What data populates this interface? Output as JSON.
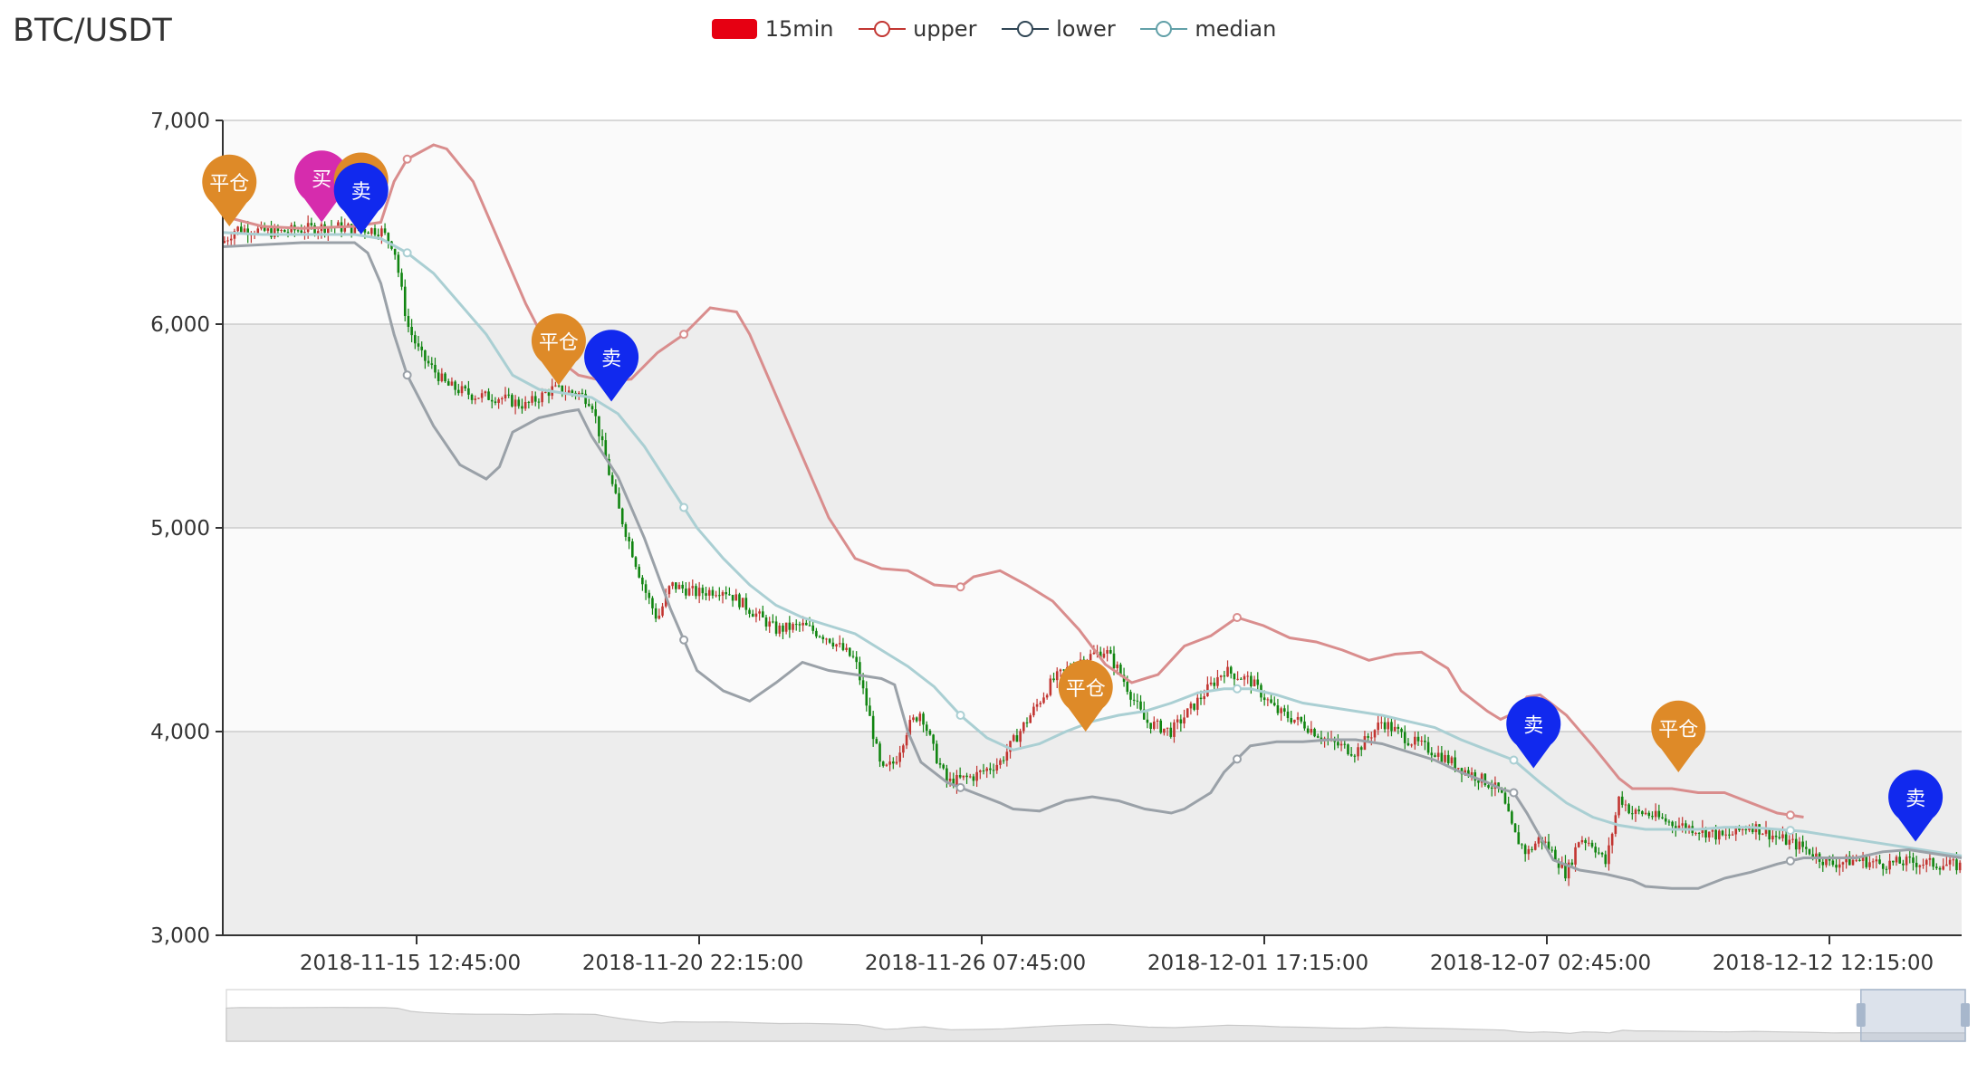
{
  "chart_data": {
    "type": "candlestick",
    "title": "BTC/USDT",
    "legend": {
      "position": "top-center",
      "items": [
        {
          "name": "15min",
          "color": "#e60012",
          "kind": "box"
        },
        {
          "name": "upper",
          "color": "#c23531",
          "kind": "line"
        },
        {
          "name": "lower",
          "color": "#2f4554",
          "kind": "line"
        },
        {
          "name": "median",
          "color": "#61a0a8",
          "kind": "line"
        }
      ]
    },
    "y_axis": {
      "min": 3000,
      "max": 7000,
      "ticks": [
        "3,000",
        "4,000",
        "5,000",
        "6,000",
        "7,000"
      ],
      "bands": true
    },
    "x_axis": {
      "ticks": [
        "2018-11-15 12:45:00",
        "2018-11-20 22:15:00",
        "2018-11-26 07:45:00",
        "2018-12-01 17:15:00",
        "2018-12-07 02:45:00",
        "2018-12-12 12:15:00"
      ]
    },
    "colors": {
      "up": "#c23531",
      "down": "#118511",
      "upper": "#d98d8d",
      "lower": "#9aa1a8",
      "median": "#aacfd3",
      "buy": "#d62cad",
      "sell": "#1129ee",
      "close": "#de8a28"
    },
    "upper": [
      [
        0,
        6530
      ],
      [
        3,
        6480
      ],
      [
        6,
        6470
      ],
      [
        10,
        6480
      ],
      [
        12,
        6500
      ],
      [
        13,
        6700
      ],
      [
        14,
        6810
      ],
      [
        16,
        6880
      ],
      [
        17,
        6860
      ],
      [
        19,
        6700
      ],
      [
        21,
        6400
      ],
      [
        23,
        6100
      ],
      [
        25,
        5850
      ],
      [
        27,
        5750
      ],
      [
        29,
        5720
      ],
      [
        31,
        5730
      ],
      [
        33,
        5860
      ],
      [
        35,
        5950
      ],
      [
        37,
        6080
      ],
      [
        39,
        6060
      ],
      [
        40,
        5950
      ],
      [
        42,
        5650
      ],
      [
        44,
        5350
      ],
      [
        46,
        5050
      ],
      [
        48,
        4850
      ],
      [
        50,
        4800
      ],
      [
        52,
        4790
      ],
      [
        54,
        4720
      ],
      [
        56,
        4710
      ],
      [
        57,
        4760
      ],
      [
        59,
        4790
      ],
      [
        61,
        4720
      ],
      [
        63,
        4640
      ],
      [
        65,
        4500
      ],
      [
        67,
        4330
      ],
      [
        69,
        4240
      ],
      [
        71,
        4280
      ],
      [
        73,
        4420
      ],
      [
        75,
        4470
      ],
      [
        77,
        4560
      ],
      [
        79,
        4520
      ],
      [
        81,
        4460
      ],
      [
        83,
        4440
      ],
      [
        85,
        4400
      ],
      [
        87,
        4350
      ],
      [
        89,
        4380
      ],
      [
        91,
        4390
      ],
      [
        93,
        4310
      ],
      [
        94,
        4200
      ],
      [
        96,
        4100
      ],
      [
        97,
        4060
      ],
      [
        98,
        4090
      ],
      [
        99,
        4170
      ],
      [
        100,
        4180
      ],
      [
        102,
        4080
      ],
      [
        104,
        3930
      ],
      [
        106,
        3770
      ],
      [
        107,
        3720
      ],
      [
        110,
        3720
      ],
      [
        112,
        3700
      ],
      [
        114,
        3700
      ],
      [
        116,
        3650
      ],
      [
        118,
        3600
      ],
      [
        120,
        3580
      ]
    ],
    "lower": [
      [
        0,
        6380
      ],
      [
        3,
        6390
      ],
      [
        6,
        6400
      ],
      [
        10,
        6400
      ],
      [
        11,
        6350
      ],
      [
        12,
        6200
      ],
      [
        13,
        5950
      ],
      [
        14,
        5750
      ],
      [
        16,
        5500
      ],
      [
        18,
        5310
      ],
      [
        20,
        5240
      ],
      [
        21,
        5300
      ],
      [
        22,
        5470
      ],
      [
        24,
        5540
      ],
      [
        26,
        5570
      ],
      [
        27,
        5580
      ],
      [
        28,
        5450
      ],
      [
        30,
        5250
      ],
      [
        32,
        4950
      ],
      [
        34,
        4600
      ],
      [
        36,
        4300
      ],
      [
        38,
        4200
      ],
      [
        40,
        4150
      ],
      [
        42,
        4240
      ],
      [
        44,
        4340
      ],
      [
        46,
        4300
      ],
      [
        48,
        4280
      ],
      [
        50,
        4260
      ],
      [
        51,
        4230
      ],
      [
        52,
        4000
      ],
      [
        53,
        3850
      ],
      [
        55,
        3750
      ],
      [
        57,
        3700
      ],
      [
        59,
        3650
      ],
      [
        60,
        3620
      ],
      [
        62,
        3610
      ],
      [
        64,
        3660
      ],
      [
        66,
        3680
      ],
      [
        68,
        3660
      ],
      [
        70,
        3620
      ],
      [
        72,
        3600
      ],
      [
        73,
        3620
      ],
      [
        75,
        3700
      ],
      [
        76,
        3800
      ],
      [
        78,
        3930
      ],
      [
        80,
        3950
      ],
      [
        82,
        3950
      ],
      [
        84,
        3960
      ],
      [
        86,
        3960
      ],
      [
        88,
        3940
      ],
      [
        90,
        3900
      ],
      [
        92,
        3860
      ],
      [
        94,
        3800
      ],
      [
        96,
        3750
      ],
      [
        97,
        3720
      ],
      [
        98,
        3700
      ],
      [
        99,
        3600
      ],
      [
        101,
        3370
      ],
      [
        103,
        3320
      ],
      [
        105,
        3300
      ],
      [
        107,
        3270
      ],
      [
        108,
        3240
      ],
      [
        110,
        3230
      ],
      [
        112,
        3230
      ],
      [
        114,
        3280
      ],
      [
        116,
        3310
      ],
      [
        118,
        3350
      ],
      [
        120,
        3380
      ],
      [
        122,
        3380
      ],
      [
        124,
        3380
      ],
      [
        126,
        3410
      ],
      [
        128,
        3420
      ],
      [
        130,
        3400
      ],
      [
        132,
        3380
      ]
    ],
    "median": [
      [
        0,
        6450
      ],
      [
        3,
        6440
      ],
      [
        6,
        6440
      ],
      [
        10,
        6440
      ],
      [
        12,
        6420
      ],
      [
        14,
        6350
      ],
      [
        16,
        6250
      ],
      [
        18,
        6100
      ],
      [
        20,
        5950
      ],
      [
        22,
        5750
      ],
      [
        24,
        5680
      ],
      [
        26,
        5660
      ],
      [
        28,
        5640
      ],
      [
        30,
        5560
      ],
      [
        32,
        5400
      ],
      [
        34,
        5200
      ],
      [
        36,
        5000
      ],
      [
        38,
        4850
      ],
      [
        40,
        4720
      ],
      [
        42,
        4620
      ],
      [
        44,
        4560
      ],
      [
        46,
        4520
      ],
      [
        48,
        4480
      ],
      [
        50,
        4400
      ],
      [
        52,
        4320
      ],
      [
        54,
        4220
      ],
      [
        56,
        4080
      ],
      [
        58,
        3970
      ],
      [
        60,
        3910
      ],
      [
        62,
        3940
      ],
      [
        64,
        4000
      ],
      [
        66,
        4050
      ],
      [
        68,
        4080
      ],
      [
        70,
        4100
      ],
      [
        72,
        4140
      ],
      [
        74,
        4190
      ],
      [
        76,
        4210
      ],
      [
        78,
        4210
      ],
      [
        80,
        4180
      ],
      [
        82,
        4140
      ],
      [
        84,
        4120
      ],
      [
        86,
        4100
      ],
      [
        88,
        4080
      ],
      [
        90,
        4050
      ],
      [
        92,
        4020
      ],
      [
        94,
        3960
      ],
      [
        96,
        3910
      ],
      [
        98,
        3860
      ],
      [
        100,
        3750
      ],
      [
        102,
        3650
      ],
      [
        104,
        3580
      ],
      [
        106,
        3540
      ],
      [
        108,
        3520
      ],
      [
        110,
        3520
      ],
      [
        112,
        3520
      ],
      [
        114,
        3530
      ],
      [
        116,
        3530
      ],
      [
        118,
        3520
      ],
      [
        120,
        3510
      ],
      [
        122,
        3490
      ],
      [
        124,
        3470
      ],
      [
        126,
        3450
      ],
      [
        128,
        3430
      ],
      [
        130,
        3410
      ],
      [
        132,
        3390
      ]
    ],
    "price_path": [
      [
        0,
        6400
      ],
      [
        1,
        6470
      ],
      [
        4,
        6450
      ],
      [
        8,
        6480
      ],
      [
        12,
        6460
      ],
      [
        13,
        6380
      ],
      [
        14,
        6000
      ],
      [
        15,
        5850
      ],
      [
        17,
        5700
      ],
      [
        19,
        5650
      ],
      [
        21,
        5640
      ],
      [
        23,
        5600
      ],
      [
        25,
        5680
      ],
      [
        27,
        5660
      ],
      [
        28,
        5620
      ],
      [
        29,
        5350
      ],
      [
        30,
        5100
      ],
      [
        31,
        4900
      ],
      [
        32,
        4700
      ],
      [
        33,
        4550
      ],
      [
        34,
        4720
      ],
      [
        36,
        4680
      ],
      [
        38,
        4700
      ],
      [
        40,
        4600
      ],
      [
        42,
        4500
      ],
      [
        44,
        4520
      ],
      [
        46,
        4460
      ],
      [
        48,
        4350
      ],
      [
        49,
        4100
      ],
      [
        50,
        3800
      ],
      [
        51,
        3850
      ],
      [
        52,
        4020
      ],
      [
        53,
        4100
      ],
      [
        54,
        3900
      ],
      [
        55,
        3750
      ],
      [
        57,
        3780
      ],
      [
        59,
        3850
      ],
      [
        61,
        4050
      ],
      [
        63,
        4250
      ],
      [
        65,
        4350
      ],
      [
        67,
        4400
      ],
      [
        68,
        4300
      ],
      [
        70,
        4050
      ],
      [
        72,
        4000
      ],
      [
        74,
        4150
      ],
      [
        76,
        4300
      ],
      [
        78,
        4250
      ],
      [
        80,
        4100
      ],
      [
        82,
        4040
      ],
      [
        84,
        3950
      ],
      [
        86,
        3900
      ],
      [
        88,
        4050
      ],
      [
        90,
        3960
      ],
      [
        92,
        3900
      ],
      [
        94,
        3820
      ],
      [
        96,
        3750
      ],
      [
        97,
        3700
      ],
      [
        98,
        3500
      ],
      [
        99,
        3400
      ],
      [
        100,
        3480
      ],
      [
        101,
        3400
      ],
      [
        102,
        3300
      ],
      [
        103,
        3480
      ],
      [
        104,
        3450
      ],
      [
        105,
        3350
      ],
      [
        106,
        3680
      ],
      [
        107,
        3600
      ],
      [
        108,
        3600
      ],
      [
        110,
        3550
      ],
      [
        112,
        3520
      ],
      [
        114,
        3480
      ],
      [
        116,
        3540
      ],
      [
        118,
        3480
      ],
      [
        120,
        3430
      ],
      [
        122,
        3350
      ],
      [
        124,
        3370
      ],
      [
        126,
        3350
      ],
      [
        128,
        3360
      ],
      [
        132,
        3340
      ]
    ],
    "markers": [
      {
        "label": "平仓",
        "type": "close",
        "x": 0.5,
        "y": 6480
      },
      {
        "label": "买",
        "type": "buy",
        "x": 7.5,
        "y": 6500
      },
      {
        "label": "平",
        "type": "close",
        "x": 10.5,
        "y": 6490
      },
      {
        "label": "卖",
        "type": "sell",
        "x": 10.5,
        "y": 6440
      },
      {
        "label": "平仓",
        "type": "close",
        "x": 25.5,
        "y": 5700
      },
      {
        "label": "卖",
        "type": "sell",
        "x": 29.5,
        "y": 5620
      },
      {
        "label": "平仓",
        "type": "close",
        "x": 65.5,
        "y": 4000
      },
      {
        "label": "卖",
        "type": "sell",
        "x": 99.5,
        "y": 3820
      },
      {
        "label": "平仓",
        "type": "close",
        "x": 110.5,
        "y": 3800
      },
      {
        "label": "卖",
        "type": "sell",
        "x": 128.5,
        "y": 3460
      }
    ]
  }
}
